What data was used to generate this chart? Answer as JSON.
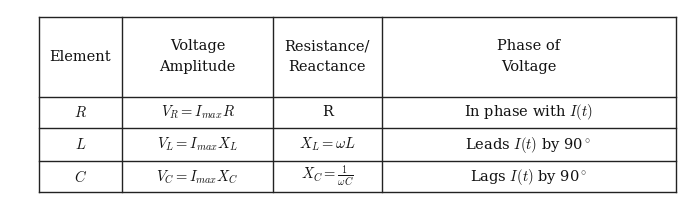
{
  "figsize": [
    7.0,
    2.08
  ],
  "dpi": 100,
  "background_color": "#ffffff",
  "col_boundaries": [
    0.055,
    0.175,
    0.39,
    0.545,
    0.965
  ],
  "row_boundaries": [
    0.92,
    0.535,
    0.385,
    0.225,
    0.075
  ],
  "line_color": "#222222",
  "font_color": "#111111",
  "header_fontsize": 10.5,
  "body_fontsize": 10.5
}
